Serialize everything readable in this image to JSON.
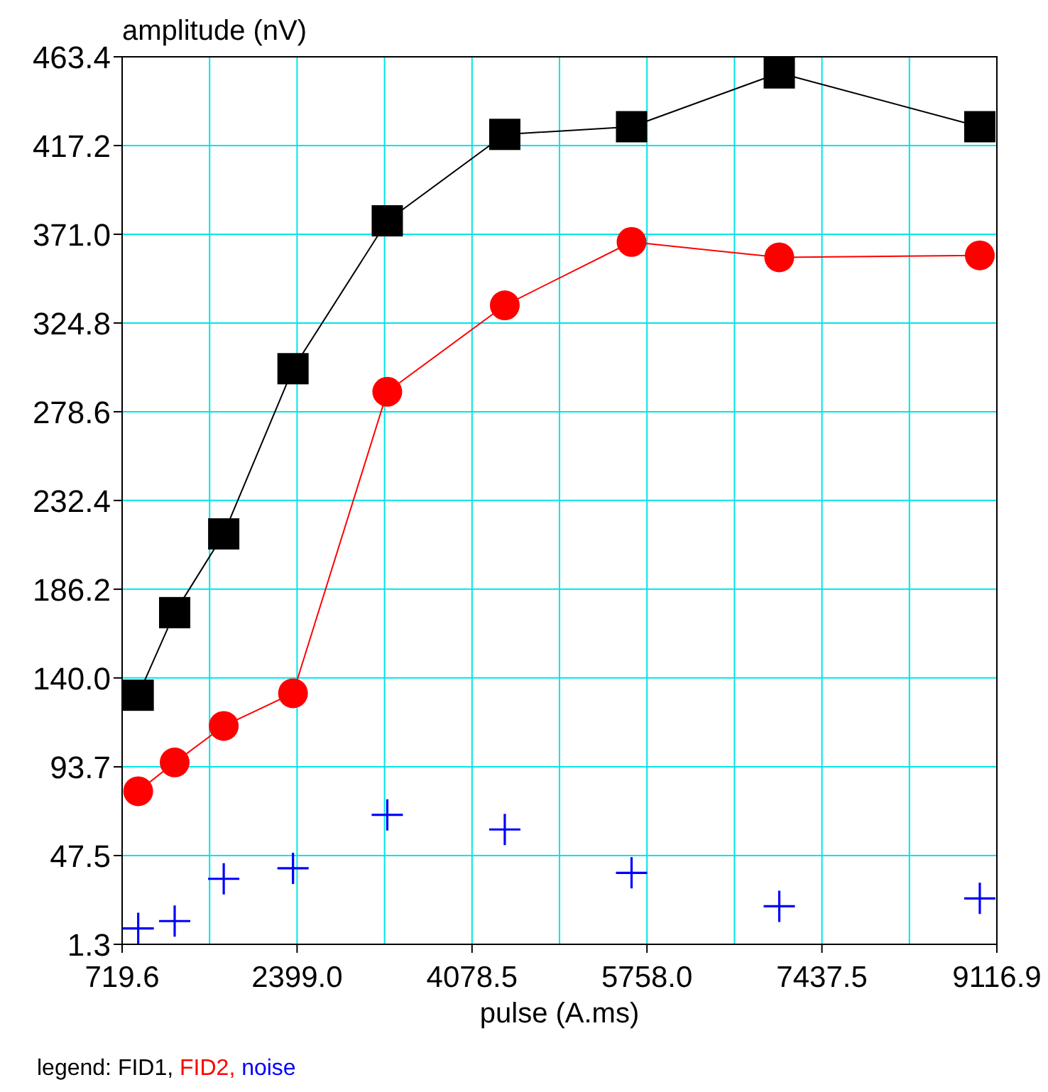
{
  "chart_data": {
    "type": "line",
    "xlabel": "pulse (A.ms)",
    "ylabel": "amplitude (nV)",
    "legend_title": "legend:",
    "legend": "bottom left",
    "grid": true,
    "xlim": [
      719.6,
      9116.9
    ],
    "ylim": [
      1.3,
      463.4
    ],
    "xticks": [
      {
        "value": 719.6,
        "label": "719.6"
      },
      {
        "value": 1559.3,
        "label": null
      },
      {
        "value": 2399.0,
        "label": "2399.0"
      },
      {
        "value": 3238.75,
        "label": null
      },
      {
        "value": 4078.5,
        "label": "4078.5"
      },
      {
        "value": 4918.25,
        "label": null
      },
      {
        "value": 5758.0,
        "label": "5758.0"
      },
      {
        "value": 6597.75,
        "label": null
      },
      {
        "value": 7437.5,
        "label": "7437.5"
      },
      {
        "value": 8277.2,
        "label": null
      },
      {
        "value": 9116.9,
        "label": "9116.9"
      }
    ],
    "yticks": [
      1.3,
      47.5,
      93.7,
      {
        "value": 140.0,
        "label": "140.0"
      },
      186.2,
      232.4,
      278.6,
      324.8,
      {
        "value": 371.0,
        "label": "371.0"
      },
      417.2,
      463.4
    ],
    "x": [
      874,
      1224,
      1695,
      2360,
      3265,
      4393,
      5610,
      7028,
      8953
    ],
    "series": [
      {
        "name": "FID1,",
        "color": "#000000",
        "marker": "square",
        "line_style": "solid",
        "values": [
          131,
          174,
          215,
          301,
          378,
          423,
          427,
          455,
          427
        ]
      },
      {
        "name": "FID2,",
        "color": "#ff0000",
        "marker": "circle",
        "line_style": "solid",
        "values": [
          81,
          96,
          115,
          132,
          289,
          334,
          367,
          359,
          360
        ]
      },
      {
        "name": "noise",
        "type": "scatter",
        "color": "#0000ff",
        "marker": "cross",
        "values": [
          9.6,
          13.4,
          35.4,
          40.9,
          68.7,
          61.1,
          38.5,
          21.1,
          25.2
        ]
      }
    ]
  }
}
